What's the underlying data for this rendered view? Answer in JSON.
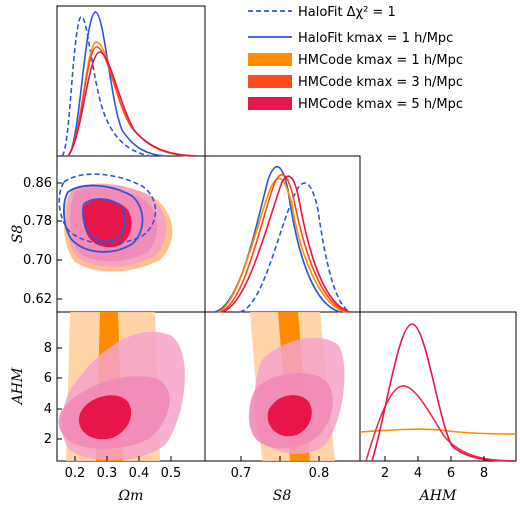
{
  "chart_data": {
    "type": "triangle-corner",
    "parameters": [
      {
        "name": "Ωm",
        "ticks": [
          "0.2",
          "0.3",
          "0.4",
          "0.5"
        ],
        "range": [
          0.14,
          0.58
        ]
      },
      {
        "name": "S8",
        "ticks": [
          "0.62",
          "0.70",
          "0.78",
          "0.86"
        ],
        "range": [
          0.58,
          0.9
        ]
      },
      {
        "name": "AHM",
        "ticks": [
          "2",
          "4",
          "6",
          "8"
        ],
        "range": [
          0,
          10
        ]
      }
    ],
    "axis_labels": {
      "x": [
        "Ωm",
        "S8",
        "AHM"
      ],
      "y": [
        "S8",
        "AHM"
      ]
    },
    "legend": [
      {
        "label": "HaloFit Δχ² = 1",
        "style": "dashed",
        "color": "#2e55d6"
      },
      {
        "label": "HaloFit kmax = 1 h/Mpc",
        "style": "line",
        "color": "#2e55d6"
      },
      {
        "label": "HMCode kmax = 1 h/Mpc",
        "style": "fill",
        "color": "#ff8c00"
      },
      {
        "label": "HMCode kmax = 3 h/Mpc",
        "style": "fill",
        "color": "#ff4a1c"
      },
      {
        "label": "HMCode kmax = 5 h/Mpc",
        "style": "fill",
        "color": "#e81548"
      }
    ],
    "series": [
      {
        "name": "HaloFit Δχ² = 1",
        "Om_peak": 0.24,
        "S8_peak": 0.82
      },
      {
        "name": "HaloFit kmax = 1 h/Mpc",
        "Om_peak": 0.26,
        "S8_peak": 0.77
      },
      {
        "name": "HMCode kmax = 1 h/Mpc",
        "Om_peak": 0.28,
        "S8_peak": 0.78,
        "AHM": "flat"
      },
      {
        "name": "HMCode kmax = 3 h/Mpc",
        "Om_peak": 0.28,
        "S8_peak": 0.79,
        "AHM_peak": 3.0
      },
      {
        "name": "HMCode kmax = 5 h/Mpc",
        "Om_peak": 0.27,
        "S8_peak": 0.78,
        "AHM_peak": 3.3
      }
    ],
    "legend_position": "top-right",
    "grid": false
  }
}
